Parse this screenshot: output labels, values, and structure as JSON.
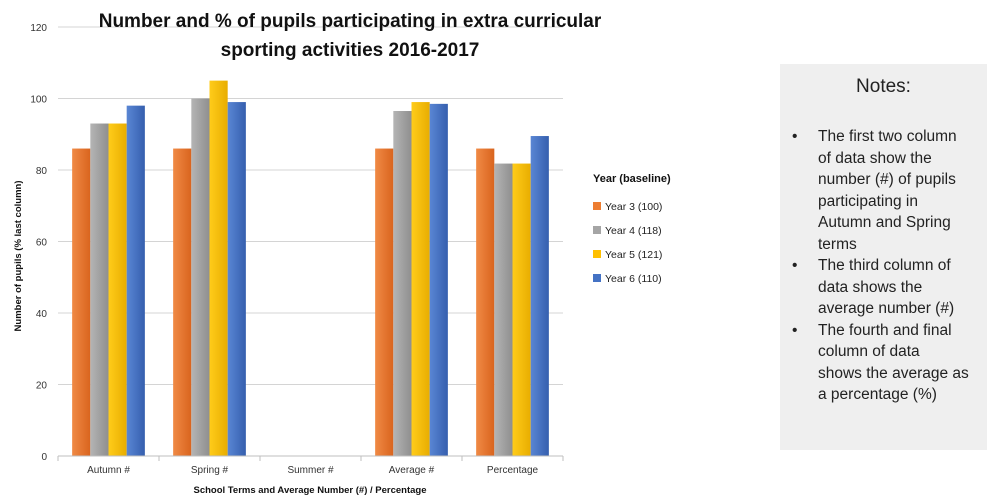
{
  "chart_data": {
    "type": "bar",
    "title": "Number and % of pupils participating in extra curricular sporting activities 2016-2017",
    "title_lines": [
      "Number and % of pupils participating in extra curricular",
      "sporting activities 2016-2017"
    ],
    "xlabel": "School Terms and Average Number (#) / Percentage",
    "ylabel": "Number of pupils  (% last column)",
    "ylim": [
      0,
      120
    ],
    "yticks": [
      0,
      20,
      40,
      60,
      80,
      100,
      120
    ],
    "grid": true,
    "legend_position": "right",
    "legend_title": "Year (baseline)",
    "categories": [
      "Autumn #",
      "Spring #",
      "Summer #",
      "Average #",
      "Percentage"
    ],
    "series": [
      {
        "name": "Year 3 (100)",
        "color": "#ED7D31",
        "values": [
          86,
          86,
          null,
          86,
          86
        ]
      },
      {
        "name": "Year 4 (118)",
        "color": "#A5A5A5",
        "values": [
          93,
          100,
          null,
          96.5,
          81.8
        ]
      },
      {
        "name": "Year 5 (121)",
        "color": "#FFC000",
        "values": [
          93,
          105,
          null,
          99,
          81.8
        ]
      },
      {
        "name": "Year 6 (110)",
        "color": "#4472C4",
        "values": [
          98,
          99,
          null,
          98.5,
          89.5
        ]
      }
    ]
  },
  "notes": {
    "title": "Notes:",
    "items": [
      "The first two column\nof data show the\nnumber (#) of pupils\nparticipating in\nAutumn and Spring\nterms",
      "The third column of\ndata shows the\naverage number (#)",
      "The fourth and final\ncolumn of data\nshows the average as\na percentage (%)"
    ]
  }
}
